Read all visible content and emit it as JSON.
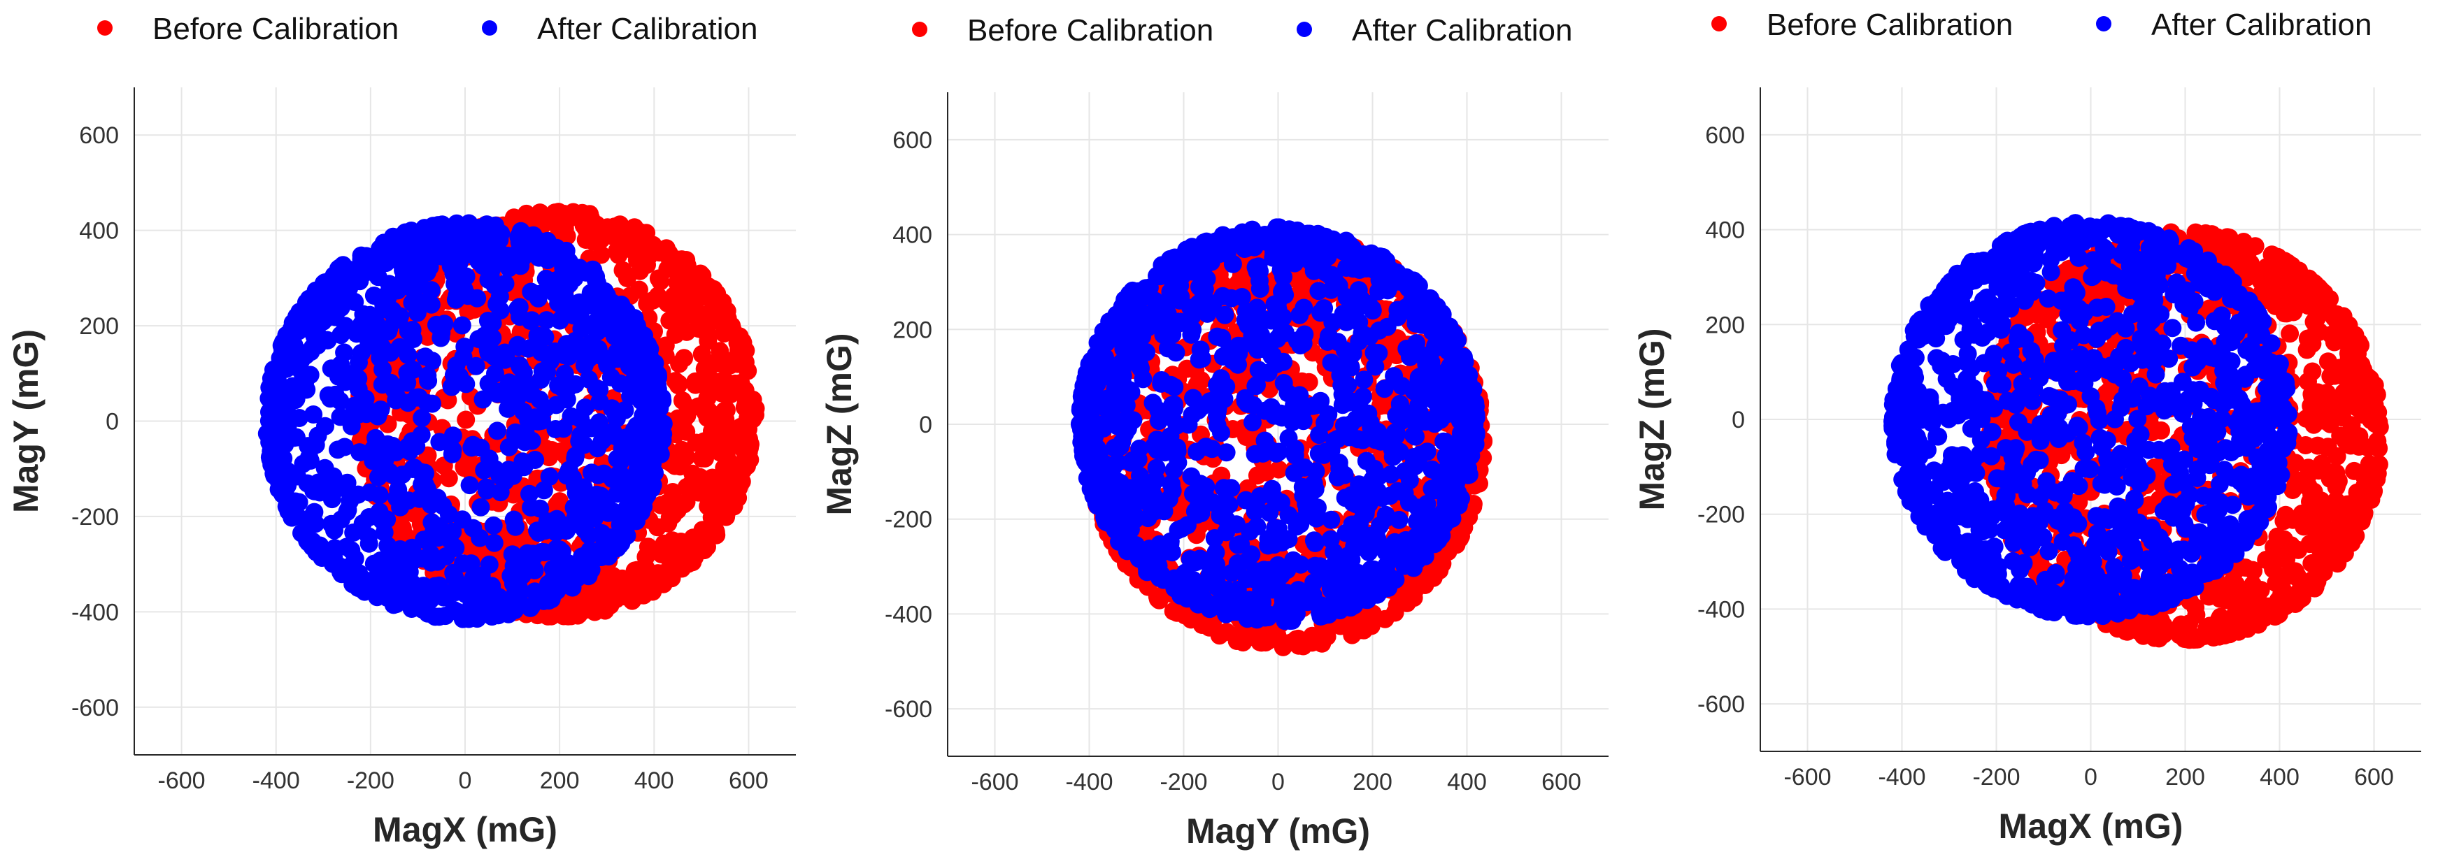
{
  "legend": {
    "before": "Before Calibration",
    "after": "After Calibration"
  },
  "colors": {
    "before": "#ff0000",
    "after": "#0000ff",
    "grid": "#e6e6e6",
    "axis": "#262626"
  },
  "chart_data": [
    {
      "type": "scatter",
      "title": "",
      "xlabel": "MagX (mG)",
      "ylabel": "MagY (mG)",
      "xlim": [
        -700,
        700
      ],
      "ylim": [
        -700,
        700
      ],
      "xticks": [
        -600,
        -400,
        -200,
        0,
        200,
        400,
        600
      ],
      "yticks": [
        -600,
        -400,
        -200,
        0,
        200,
        400,
        600
      ],
      "grid": true,
      "legend_position": "top",
      "series": [
        {
          "name": "Before Calibration",
          "shape": "ellipsoid-ring",
          "center": [
            195,
            15
          ],
          "radius": [
            420,
            425
          ]
        },
        {
          "name": "After Calibration",
          "shape": "ellipsoid-ring",
          "center": [
            0,
            0
          ],
          "radius": [
            420,
            415
          ]
        }
      ]
    },
    {
      "type": "scatter",
      "title": "",
      "xlabel": "MagY (mG)",
      "ylabel": "MagZ (mG)",
      "xlim": [
        -700,
        700
      ],
      "ylim": [
        -700,
        700
      ],
      "xticks": [
        -600,
        -400,
        -200,
        0,
        200,
        400,
        600
      ],
      "yticks": [
        -600,
        -400,
        -200,
        0,
        200,
        400,
        600
      ],
      "grid": true,
      "legend_position": "top",
      "series": [
        {
          "name": "Before Calibration",
          "shape": "ellipsoid-ring",
          "center": [
            15,
            -35
          ],
          "radius": [
            420,
            435
          ]
        },
        {
          "name": "After Calibration",
          "shape": "ellipsoid-ring",
          "center": [
            0,
            0
          ],
          "radius": [
            420,
            415
          ]
        }
      ]
    },
    {
      "type": "scatter",
      "title": "",
      "xlabel": "MagX (mG)",
      "ylabel": "MagZ (mG)",
      "xlim": [
        -700,
        700
      ],
      "ylim": [
        -700,
        700
      ],
      "xticks": [
        -600,
        -400,
        -200,
        0,
        200,
        400,
        600
      ],
      "yticks": [
        -600,
        -400,
        -200,
        0,
        200,
        400,
        600
      ],
      "grid": true,
      "legend_position": "top",
      "series": [
        {
          "name": "Before Calibration",
          "shape": "ellipsoid-ring",
          "center": [
            195,
            -35
          ],
          "radius": [
            420,
            430
          ]
        },
        {
          "name": "After Calibration",
          "shape": "ellipsoid-ring",
          "center": [
            0,
            0
          ],
          "radius": [
            420,
            415
          ]
        }
      ]
    }
  ]
}
